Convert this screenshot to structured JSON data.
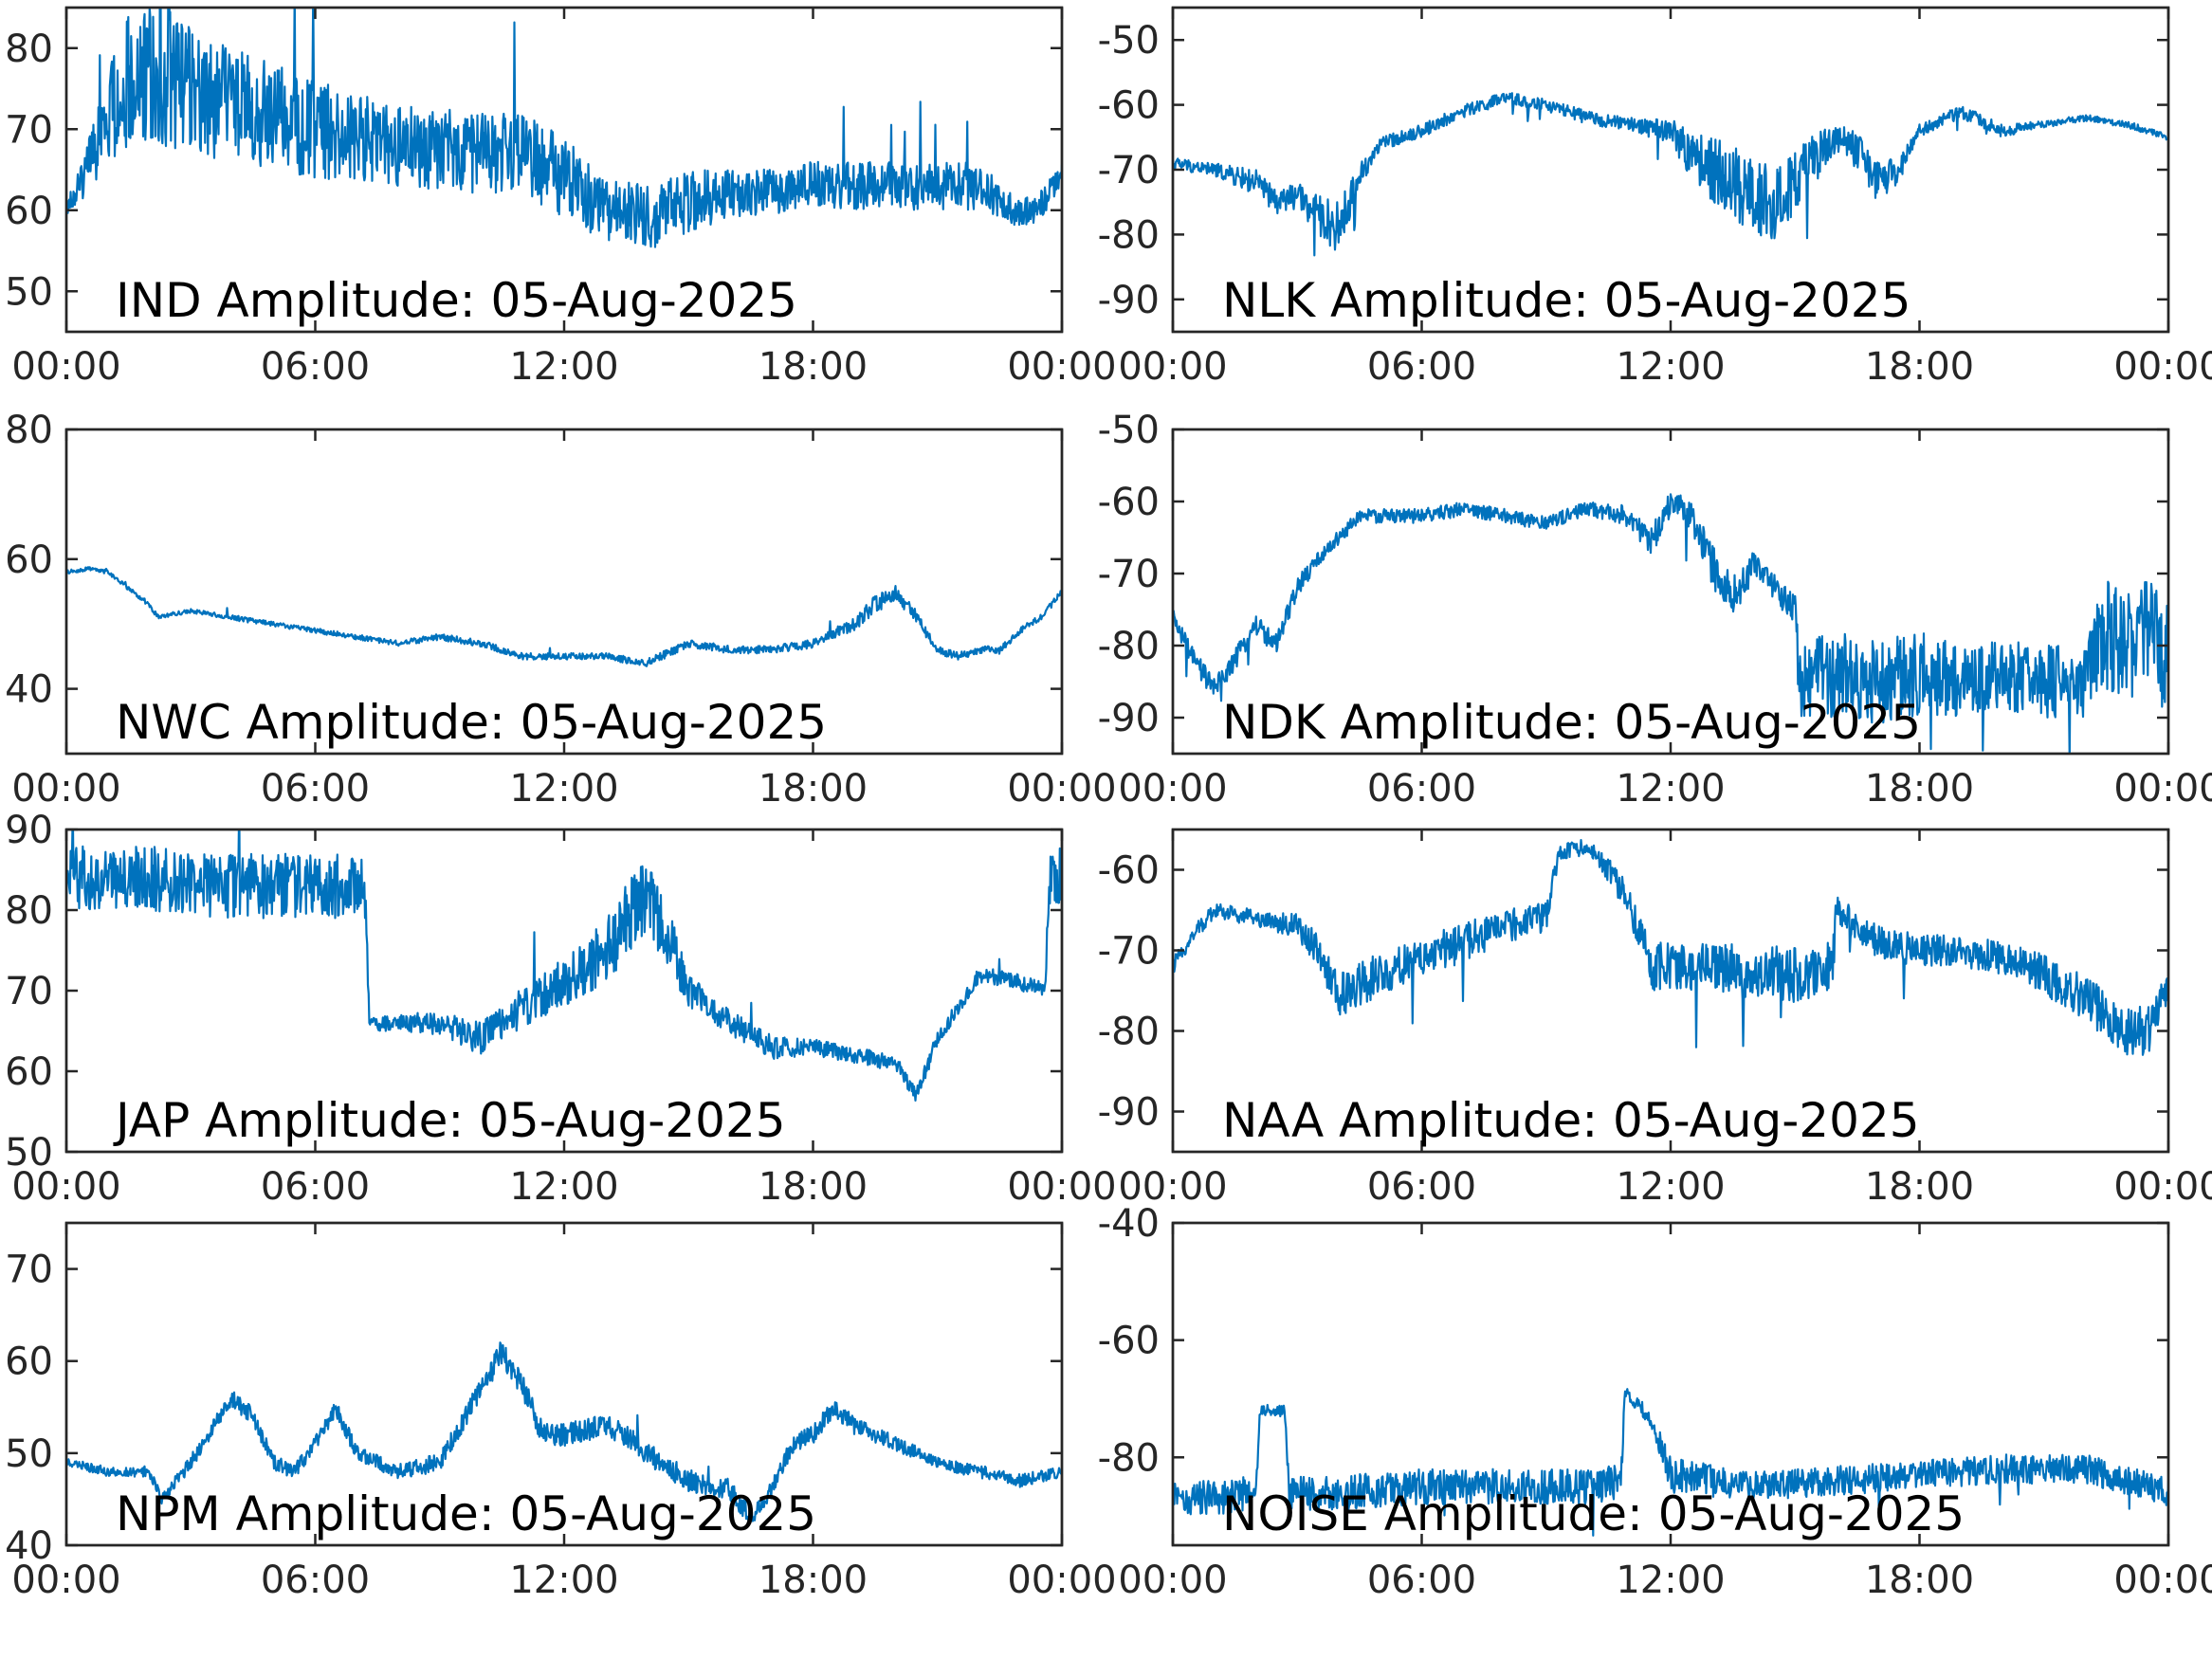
{
  "figure": {
    "x_ticks": [
      "00:00",
      "06:00",
      "12:00",
      "18:00",
      "00:00"
    ],
    "x_range": [
      "00:00",
      "24:00"
    ],
    "line_color": "#0072BD"
  },
  "chart_data": [
    {
      "type": "line",
      "title": "IND Amplitude: 05-Aug-2025",
      "xlabel": "",
      "ylabel": "",
      "ylim": [
        -85,
        -45
      ],
      "y_ticks": [
        -50,
        -60,
        -70,
        -80
      ],
      "y_tick_labels": [
        "50",
        "60",
        "70",
        "80"
      ],
      "reversed_y": true,
      "x_hours": [
        0,
        0.5,
        1,
        1.5,
        2,
        3,
        4,
        6,
        8,
        10,
        11,
        12,
        13,
        14,
        15,
        16,
        18,
        20,
        22,
        22.8,
        23.3,
        24
      ],
      "values": [
        -60,
        -65,
        -72,
        -76,
        -77,
        -75,
        -73,
        -70,
        -68,
        -67,
        -67,
        -64,
        -60,
        -59,
        -61,
        -62,
        -63,
        -63,
        -63,
        -60,
        -60,
        -64
      ],
      "noise": [
        1,
        3,
        6,
        8,
        9,
        8,
        7,
        6,
        5,
        5,
        5,
        5,
        4,
        4,
        4,
        3,
        3,
        3,
        3,
        2,
        2,
        2
      ]
    },
    {
      "type": "line",
      "title": "NLK Amplitude: 05-Aug-2025",
      "xlabel": "",
      "ylabel": "",
      "ylim": [
        -95,
        -45
      ],
      "y_ticks": [
        -50,
        -60,
        -70,
        -80,
        -90
      ],
      "y_tick_labels": [
        "-50",
        "-60",
        "-70",
        "-80",
        "-90"
      ],
      "reversed_y": false,
      "x_hours": [
        0,
        1,
        2,
        2.5,
        3,
        3.5,
        4,
        4.5,
        5,
        6,
        7,
        8,
        9,
        10,
        11,
        12,
        12.5,
        13,
        13.5,
        14,
        14.5,
        15,
        15.5,
        16,
        16.5,
        17,
        17.5,
        18,
        19,
        20,
        21,
        22,
        23,
        24
      ],
      "values": [
        -69,
        -70,
        -72,
        -75,
        -74,
        -77,
        -79,
        -71,
        -66,
        -64,
        -61,
        -59,
        -60,
        -62,
        -63,
        -64,
        -68,
        -70,
        -72,
        -74,
        -76,
        -72,
        -68,
        -65,
        -67,
        -72,
        -70,
        -64,
        -61,
        -64,
        -63,
        -62,
        -63,
        -65
      ],
      "noise": [
        1,
        1,
        2,
        2,
        2,
        3,
        4,
        2,
        1,
        1,
        1,
        1,
        1,
        1,
        1,
        2,
        4,
        5,
        6,
        6,
        6,
        5,
        4,
        2,
        3,
        3,
        2,
        1,
        1,
        1,
        0.5,
        0.5,
        0.5,
        0.5
      ]
    },
    {
      "type": "line",
      "title": "NWC Amplitude: 05-Aug-2025",
      "xlabel": "",
      "ylabel": "",
      "ylim": [
        -80,
        -30
      ],
      "y_ticks": [
        -40,
        -60,
        -80
      ],
      "y_tick_labels": [
        "40",
        "60",
        "80"
      ],
      "reversed_y": true,
      "x_hours": [
        0,
        0.5,
        1,
        2,
        2.2,
        3,
        4,
        5,
        6,
        7,
        8,
        9,
        10,
        11,
        12,
        13,
        14,
        15,
        16,
        17,
        18,
        19,
        19.5,
        20,
        20.5,
        21,
        21.5,
        22,
        22.5,
        23,
        23.5,
        24
      ],
      "values": [
        -58,
        -58.5,
        -58,
        -53,
        -51,
        -52,
        -51,
        -50,
        -49,
        -48,
        -47,
        -48,
        -47,
        -45,
        -45,
        -45,
        -44,
        -47,
        -46,
        -46,
        -47,
        -50,
        -53,
        -55,
        -51,
        -46,
        -45,
        -46,
        -46,
        -49,
        -51,
        -55
      ],
      "noise": [
        0.3,
        0.3,
        0.3,
        0.4,
        0.4,
        0.3,
        0.4,
        0.4,
        0.4,
        0.4,
        0.4,
        0.5,
        0.5,
        0.5,
        0.5,
        0.5,
        0.6,
        0.6,
        0.6,
        0.6,
        0.7,
        1,
        1.4,
        1.4,
        1,
        0.6,
        0.6,
        0.6,
        0.6,
        0.5,
        0.5,
        0.4
      ]
    },
    {
      "type": "line",
      "title": "NDK Amplitude: 05-Aug-2025",
      "xlabel": "",
      "ylabel": "",
      "ylim": [
        -95,
        -50
      ],
      "y_ticks": [
        -50,
        -60,
        -70,
        -80,
        -90
      ],
      "y_tick_labels": [
        "-50",
        "-60",
        "-70",
        "-80",
        "-90"
      ],
      "reversed_y": false,
      "x_hours": [
        0,
        0.5,
        1,
        1.5,
        2,
        2.5,
        3,
        3.5,
        4,
        4.5,
        5,
        6,
        7,
        8,
        9,
        10,
        11,
        11.5,
        12,
        12.5,
        13,
        13.5,
        14,
        14.5,
        15,
        15.1,
        16,
        17,
        18,
        19,
        20,
        21,
        22,
        22.5,
        23,
        23.5,
        24
      ],
      "values": [
        -76,
        -82,
        -86,
        -82,
        -77,
        -80,
        -72,
        -68,
        -65,
        -62,
        -62,
        -62,
        -61,
        -62,
        -63,
        -61,
        -62,
        -66,
        -60,
        -62,
        -69,
        -73,
        -69,
        -72,
        -75,
        -84,
        -84,
        -85,
        -84,
        -85,
        -84,
        -85,
        -85,
        -78,
        -80,
        -78,
        -82
      ],
      "noise": [
        1,
        1.5,
        1.5,
        1.5,
        1.5,
        1.5,
        1.5,
        1,
        1,
        1,
        1,
        1,
        1,
        1,
        1,
        1,
        1.5,
        2,
        2,
        2,
        3,
        3,
        2,
        2,
        2,
        6,
        6,
        6,
        6,
        5,
        5,
        5,
        5,
        8,
        8,
        8,
        8
      ]
    },
    {
      "type": "line",
      "title": "JAP Amplitude: 05-Aug-2025",
      "xlabel": "",
      "ylabel": "",
      "ylim": [
        -90,
        -50
      ],
      "y_ticks": [
        -50,
        -60,
        -70,
        -80,
        -90
      ],
      "y_tick_labels": [
        "50",
        "60",
        "70",
        "80",
        "90"
      ],
      "reversed_y": true,
      "x_hours": [
        0,
        1,
        2,
        3,
        4,
        5,
        6,
        7.2,
        7.3,
        8,
        9,
        10,
        11,
        12,
        13,
        13.5,
        14,
        14.5,
        15,
        16,
        17,
        18,
        19,
        20,
        20.5,
        21,
        21.5,
        22,
        23,
        23.6,
        23.7,
        24
      ],
      "values": [
        -84,
        -84,
        -84,
        -83,
        -83,
        -83,
        -83,
        -83,
        -66,
        -66,
        -66,
        -64,
        -68,
        -71,
        -75,
        -79,
        -81,
        -77,
        -70,
        -66,
        -63,
        -63,
        -62,
        -61,
        -57,
        -64,
        -68,
        -72,
        -71,
        -70,
        -84,
        -84
      ],
      "noise": [
        4,
        4,
        4,
        4,
        4,
        4,
        4,
        4,
        1,
        1,
        1.5,
        2,
        2.5,
        3,
        4,
        5,
        5,
        4,
        2,
        1.5,
        1.5,
        1,
        1,
        1,
        1,
        1,
        1,
        1,
        1,
        1,
        4,
        4
      ]
    },
    {
      "type": "line",
      "title": "NAA Amplitude: 05-Aug-2025",
      "xlabel": "",
      "ylabel": "",
      "ylim": [
        -95,
        -55
      ],
      "y_ticks": [
        -60,
        -70,
        -80,
        -90
      ],
      "y_tick_labels": [
        "-60",
        "-70",
        "-80",
        "-90"
      ],
      "reversed_y": false,
      "x_hours": [
        0,
        0.5,
        1,
        2,
        3,
        3.5,
        4,
        4.5,
        5,
        6,
        7,
        8,
        9,
        9.3,
        10,
        10.5,
        11,
        11.5,
        12,
        13,
        14,
        15,
        15.9,
        16,
        17,
        18,
        19,
        20,
        21,
        22,
        23,
        23.5,
        24
      ],
      "values": [
        -72,
        -68,
        -65,
        -66,
        -67,
        -70,
        -76,
        -74,
        -73,
        -71,
        -69,
        -67,
        -66,
        -58,
        -57,
        -60,
        -64,
        -72,
        -72,
        -72,
        -73,
        -73,
        -72,
        -65,
        -69,
        -70,
        -70,
        -71,
        -73,
        -76,
        -80,
        -80,
        -74
      ],
      "noise": [
        1,
        1,
        1,
        1,
        1.5,
        2,
        3,
        3,
        2.5,
        2.5,
        2.5,
        2,
        2,
        1,
        1,
        1.5,
        2,
        3,
        3,
        3,
        3.5,
        3.5,
        3,
        2,
        2,
        2,
        2,
        2,
        2.5,
        3,
        3,
        3,
        2
      ]
    },
    {
      "type": "line",
      "title": "NPM Amplitude: 05-Aug-2025",
      "xlabel": "",
      "ylabel": "",
      "ylim": [
        -75,
        -40
      ],
      "y_ticks": [
        -40,
        -50,
        -60,
        -70
      ],
      "y_tick_labels": [
        "40",
        "50",
        "60",
        "70"
      ],
      "reversed_y": true,
      "x_hours": [
        0,
        1,
        2,
        2.3,
        3,
        4,
        4.5,
        5,
        5.5,
        6,
        6.5,
        7,
        8,
        9,
        10,
        10.5,
        11,
        11.5,
        12,
        13,
        13.5,
        14,
        15,
        16,
        16.5,
        17,
        17.5,
        18,
        18.5,
        19,
        20,
        21,
        22,
        23,
        24
      ],
      "values": [
        -49,
        -48,
        -48,
        -45,
        -49,
        -56,
        -54,
        -49,
        -48,
        -51,
        -55,
        -50,
        -48,
        -49,
        -57,
        -61,
        -57,
        -52,
        -52,
        -53,
        -52,
        -50,
        -47,
        -46,
        -43,
        -46,
        -51,
        -52,
        -55,
        -53,
        -51,
        -49,
        -48,
        -47,
        -48
      ],
      "noise": [
        0.5,
        0.5,
        0.6,
        0.6,
        0.8,
        1,
        1,
        0.8,
        0.8,
        0.8,
        1,
        0.8,
        0.8,
        1,
        1.2,
        1.5,
        1.5,
        1.2,
        1.2,
        1.2,
        1.2,
        1.2,
        1.2,
        1.2,
        1,
        1,
        1,
        1,
        1,
        1,
        0.8,
        0.7,
        0.7,
        0.7,
        0.6
      ]
    },
    {
      "type": "line",
      "title": "NOISE Amplitude: 05-Aug-2025",
      "xlabel": "",
      "ylabel": "",
      "ylim": [
        -95,
        -40
      ],
      "y_ticks": [
        -40,
        -60,
        -80
      ],
      "y_tick_labels": [
        "-40",
        "-60",
        "-80"
      ],
      "reversed_y": false,
      "x_hours": [
        0,
        1,
        2,
        2.1,
        2.7,
        2.8,
        3,
        4,
        6,
        8,
        10,
        10.8,
        10.9,
        11.5,
        12,
        14,
        16,
        18,
        20,
        22,
        24
      ],
      "values": [
        -87,
        -87,
        -86,
        -72,
        -72,
        -86,
        -86,
        -86,
        -85,
        -85,
        -85,
        -84,
        -69,
        -73,
        -83,
        -85,
        -84,
        -83,
        -82,
        -82,
        -86
      ],
      "noise": [
        3,
        3,
        3,
        1,
        1,
        3,
        3,
        3,
        3,
        3,
        3,
        3,
        1,
        1.5,
        3,
        2.5,
        2.5,
        2.5,
        2.5,
        2.5,
        2.5
      ]
    }
  ]
}
